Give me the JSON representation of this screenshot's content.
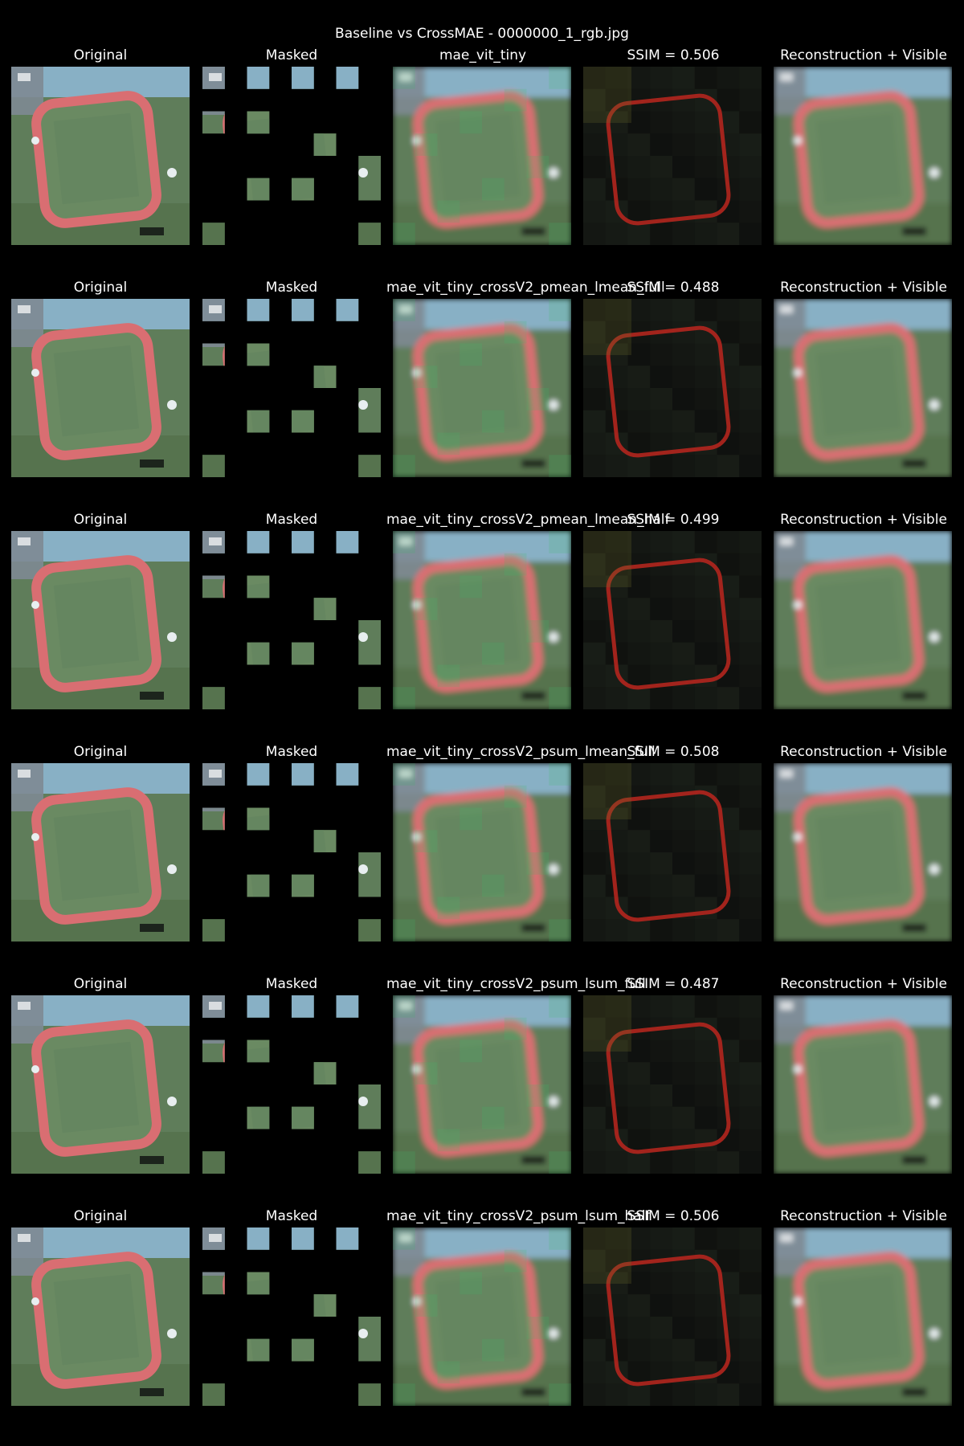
{
  "figure": {
    "title": "Baseline vs CrossMAE - 0000000_1_rgb.jpg"
  },
  "column_labels": {
    "original": "Original",
    "masked": "Masked",
    "reconstruction_visible": "Reconstruction + Visible"
  },
  "rows": [
    {
      "model": "mae_vit_tiny",
      "ssim_label": "SSIM = 0.506"
    },
    {
      "model": "mae_vit_tiny_crossV2_pmean_lmean_full",
      "ssim_label": "SSIM = 0.488"
    },
    {
      "model": "mae_vit_tiny_crossV2_pmean_lmean_half",
      "ssim_label": "SSIM = 0.499"
    },
    {
      "model": "mae_vit_tiny_crossV2_psum_lmean_full",
      "ssim_label": "SSIM = 0.508"
    },
    {
      "model": "mae_vit_tiny_crossV2_psum_lsum_full",
      "ssim_label": "SSIM = 0.487"
    },
    {
      "model": "mae_vit_tiny_crossV2_psum_lsum_half",
      "ssim_label": "SSIM = 0.506"
    }
  ],
  "colors": {
    "background": "#000000",
    "text": "#ffffff",
    "field": "#5f7d5a",
    "track": "#d96e72",
    "sky_blue": "#8fb8d8",
    "error_track": "#b3261e"
  }
}
